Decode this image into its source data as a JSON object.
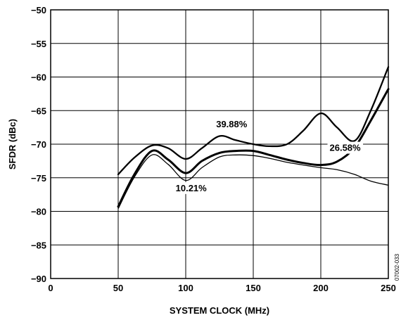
{
  "chart_data": {
    "type": "line",
    "title": "",
    "xlabel": "SYSTEM CLOCK (MHz)",
    "ylabel": "SFDR (dBc)",
    "xlim": [
      0,
      250
    ],
    "ylim": [
      -90,
      -50
    ],
    "x_ticks": [
      "0",
      "50",
      "100",
      "150",
      "200",
      "250"
    ],
    "y_ticks": [
      "−90",
      "−85",
      "−80",
      "−75",
      "−70",
      "−65",
      "−60",
      "−55",
      "−50"
    ],
    "grid": true,
    "series": [
      {
        "name": "39.88%",
        "x": [
          50,
          62,
          75,
          87,
          100,
          112,
          125,
          137,
          150,
          162,
          175,
          187,
          200,
          212,
          225,
          237,
          250
        ],
        "y": [
          -74.5,
          -72.0,
          -70.2,
          -70.6,
          -72.2,
          -70.6,
          -68.8,
          -69.4,
          -70.0,
          -70.3,
          -70.0,
          -68.0,
          -65.4,
          -67.5,
          -69.5,
          -65.0,
          -58.5
        ]
      },
      {
        "name": "26.58%",
        "x": [
          50,
          62,
          75,
          87,
          100,
          112,
          125,
          137,
          150,
          162,
          175,
          187,
          200,
          212,
          225,
          237,
          250
        ],
        "y": [
          -79.3,
          -74.5,
          -71.0,
          -72.3,
          -74.3,
          -72.5,
          -71.3,
          -71.0,
          -71.0,
          -71.6,
          -72.3,
          -72.8,
          -73.1,
          -72.6,
          -70.5,
          -66.5,
          -61.8
        ]
      },
      {
        "name": "10.21%",
        "x": [
          50,
          62,
          75,
          87,
          100,
          112,
          125,
          137,
          150,
          162,
          175,
          187,
          200,
          212,
          225,
          237,
          250
        ],
        "y": [
          -79.6,
          -74.9,
          -71.6,
          -73.0,
          -75.4,
          -73.5,
          -71.9,
          -71.6,
          -71.7,
          -72.1,
          -72.7,
          -73.1,
          -73.5,
          -73.8,
          -74.5,
          -75.5,
          -76.1
        ]
      }
    ],
    "annotations": [
      {
        "text": "39.88%",
        "x": 134,
        "y": -67.5
      },
      {
        "text": "26.58%",
        "x": 218,
        "y": -71.0
      },
      {
        "text": "10.21%",
        "x": 104,
        "y": -77.0
      }
    ],
    "figure_id": "07002-033"
  }
}
